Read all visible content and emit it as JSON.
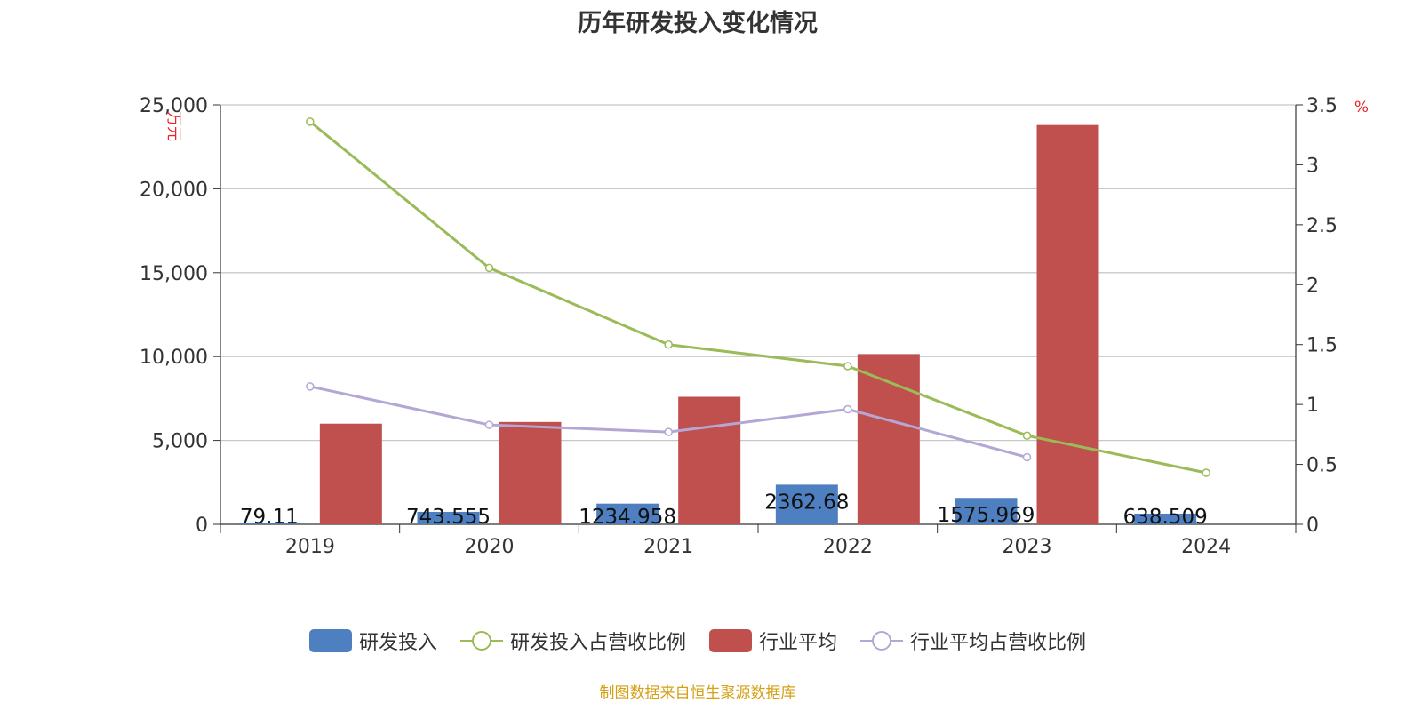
{
  "chart_data": {
    "type": "bar",
    "title": "历年研发投入变化情况",
    "categories": [
      "2019",
      "2020",
      "2021",
      "2022",
      "2023",
      "2024"
    ],
    "y_left": {
      "label": "万元",
      "ticks": [
        "0",
        "5,000",
        "10,000",
        "15,000",
        "20,000",
        "25,000"
      ],
      "range": [
        0,
        25000
      ]
    },
    "y_right": {
      "label": "%",
      "ticks": [
        "0",
        "0.5",
        "1",
        "1.5",
        "2",
        "2.5",
        "3",
        "3.5"
      ],
      "range": [
        0,
        3.5
      ]
    },
    "series": [
      {
        "name": "研发投入",
        "type": "bar",
        "axis": "left",
        "color": "#4e7fc0",
        "values": [
          79.11,
          743.555,
          1234.958,
          2362.68,
          1575.969,
          638.509
        ],
        "labels": [
          "79.11",
          "743.555",
          "1234.958",
          "2362.68",
          "1575.969",
          "638.509"
        ]
      },
      {
        "name": "研发投入占营收比例",
        "type": "line",
        "axis": "right",
        "color": "#9bbb59",
        "values": [
          3.36,
          2.14,
          1.5,
          1.32,
          0.74,
          0.43
        ]
      },
      {
        "name": "行业平均",
        "type": "bar",
        "axis": "left",
        "color": "#c0504d",
        "values": [
          6000,
          6100,
          7600,
          10150,
          23800,
          null
        ]
      },
      {
        "name": "行业平均占营收比例",
        "type": "line",
        "axis": "right",
        "color": "#b4a7d6",
        "values": [
          1.15,
          0.83,
          0.77,
          0.96,
          0.56,
          null
        ]
      }
    ],
    "grid": true,
    "legend_position": "bottom"
  },
  "source": "制图数据来自恒生聚源数据库"
}
